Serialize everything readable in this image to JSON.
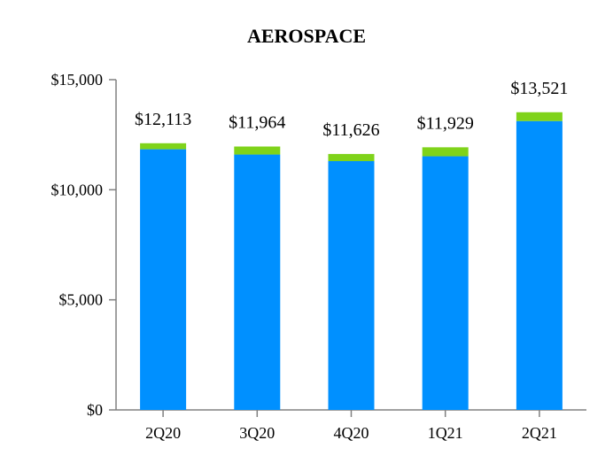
{
  "chart_data": {
    "type": "bar",
    "stacked": true,
    "title": "AEROSPACE",
    "xlabel": "",
    "ylabel": "",
    "categories": [
      "2Q20",
      "3Q20",
      "4Q20",
      "1Q21",
      "2Q21"
    ],
    "series": [
      {
        "color": "#0090ff",
        "values": [
          11840,
          11600,
          11300,
          11520,
          13120
        ]
      },
      {
        "color": "#7fd31a",
        "values": [
          273,
          364,
          326,
          409,
          401
        ]
      }
    ],
    "totals": [
      "$12,113",
      "$11,964",
      "$11,626",
      "$11,929",
      "$13,521"
    ],
    "ylim": [
      0,
      15000
    ],
    "yticks": [
      0,
      5000,
      10000,
      15000
    ],
    "ytick_labels": [
      "$0",
      "$5,000",
      "$10,000",
      "$15,000"
    ],
    "grid": false,
    "legend": "none"
  }
}
